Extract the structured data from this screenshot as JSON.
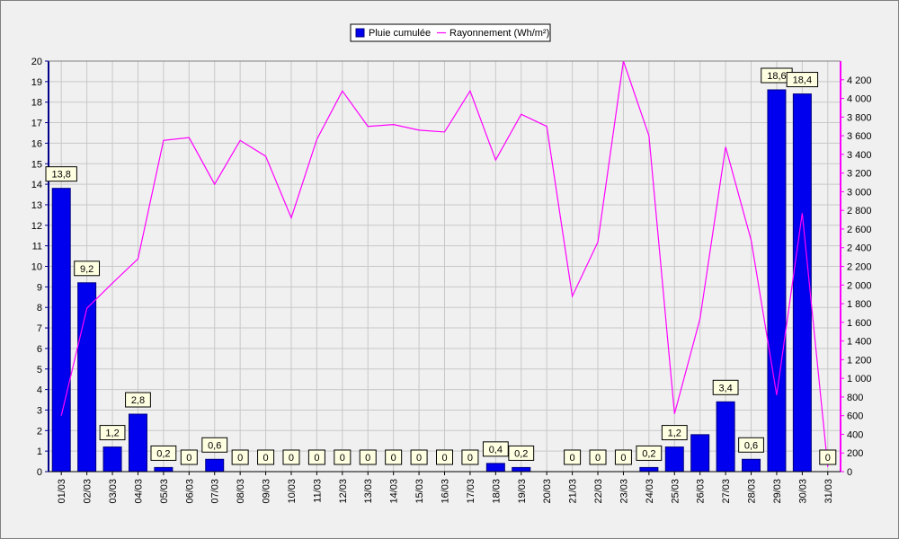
{
  "chart_data": {
    "type": "bar",
    "categories": [
      "01/03",
      "02/03",
      "03/03",
      "04/03",
      "05/03",
      "06/03",
      "07/03",
      "08/03",
      "09/03",
      "10/03",
      "11/03",
      "12/03",
      "13/03",
      "14/03",
      "15/03",
      "16/03",
      "17/03",
      "18/03",
      "19/03",
      "20/03",
      "21/03",
      "22/03",
      "23/03",
      "24/03",
      "25/03",
      "26/03",
      "27/03",
      "28/03",
      "29/03",
      "30/03",
      "31/03"
    ],
    "series": [
      {
        "name": "Pluie cumulée",
        "type": "bar",
        "axis": "left",
        "color": "#0000ee",
        "values": [
          13.8,
          9.2,
          1.2,
          2.8,
          0.2,
          0,
          0.6,
          0,
          0,
          0,
          0,
          0,
          0,
          0,
          0,
          0,
          0,
          0.4,
          0.2,
          null,
          0,
          0,
          0,
          0.2,
          1.2,
          1.8,
          3.4,
          0.6,
          18.6,
          18.4,
          0
        ],
        "data_labels": [
          "13,8",
          "9,2",
          "1,2",
          "2,8",
          "0,2",
          "0",
          "0,6",
          "0",
          "0",
          "0",
          "0",
          "0",
          "0",
          "0",
          "0",
          "0",
          "0",
          "0,4",
          "0,2",
          "",
          "0",
          "0",
          "0",
          "0,2",
          "1,2",
          "",
          "3,4",
          "0,6",
          "18,6",
          "18,4",
          "0"
        ]
      },
      {
        "name": "Rayonnement (Wh/m²)",
        "type": "line",
        "axis": "right",
        "color": "#ff00ff",
        "values": [
          600,
          1750,
          2020,
          2280,
          3550,
          3580,
          3080,
          3550,
          3380,
          2720,
          3560,
          4080,
          3700,
          3720,
          3660,
          3640,
          4080,
          3340,
          3830,
          3700,
          1880,
          2460,
          4400,
          3600,
          620,
          1640,
          3480,
          2480,
          820,
          2770,
          50
        ]
      }
    ],
    "y_left": {
      "min": 0,
      "max": 20,
      "ticks": [
        "0",
        "1",
        "2",
        "3",
        "4",
        "5",
        "6",
        "7",
        "8",
        "9",
        "10",
        "11",
        "12",
        "13",
        "14",
        "15",
        "16",
        "17",
        "18",
        "19",
        "20"
      ]
    },
    "y_right": {
      "min": 0,
      "max": 4400,
      "ticks": [
        "0",
        "200",
        "400",
        "600",
        "800",
        "1 000",
        "1 200",
        "1 400",
        "1 600",
        "1 800",
        "2 000",
        "2 200",
        "2 400",
        "2 600",
        "2 800",
        "3 000",
        "3 200",
        "3 400",
        "3 600",
        "3 800",
        "4 000",
        "4 200"
      ]
    },
    "grid": true,
    "legend_position": "top-center",
    "title": "",
    "xlabel": "",
    "ylabel": ""
  }
}
